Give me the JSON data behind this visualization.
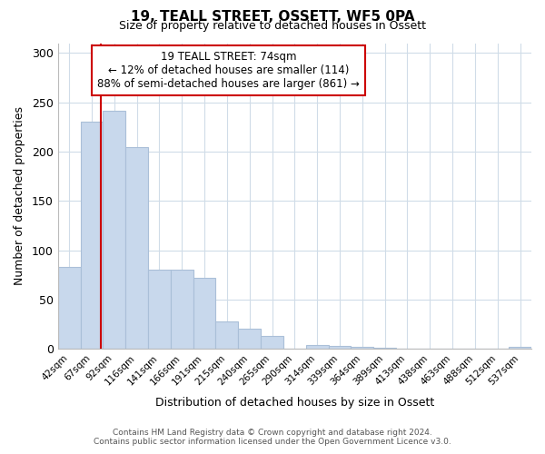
{
  "title": "19, TEALL STREET, OSSETT, WF5 0PA",
  "subtitle": "Size of property relative to detached houses in Ossett",
  "xlabel": "Distribution of detached houses by size in Ossett",
  "ylabel": "Number of detached properties",
  "bar_values": [
    83,
    230,
    241,
    205,
    80,
    80,
    72,
    28,
    20,
    13,
    0,
    4,
    3,
    2,
    1,
    0,
    0,
    0,
    0,
    0,
    2
  ],
  "bar_labels": [
    "42sqm",
    "67sqm",
    "92sqm",
    "116sqm",
    "141sqm",
    "166sqm",
    "191sqm",
    "215sqm",
    "240sqm",
    "265sqm",
    "290sqm",
    "314sqm",
    "339sqm",
    "364sqm",
    "389sqm",
    "413sqm",
    "438sqm",
    "463sqm",
    "488sqm",
    "512sqm",
    "537sqm"
  ],
  "bar_color": "#c8d8ec",
  "bar_edge_color": "#aabfd8",
  "red_line_x": 1.42,
  "red_line_color": "#cc0000",
  "annotation_line1": "19 TEALL STREET: 74sqm",
  "annotation_line2": "← 12% of detached houses are smaller (114)",
  "annotation_line3": "88% of semi-detached houses are larger (861) →",
  "annotation_box_color": "#ffffff",
  "annotation_box_edge": "#cc0000",
  "ylim": [
    0,
    310
  ],
  "yticks": [
    0,
    50,
    100,
    150,
    200,
    250,
    300
  ],
  "footer1": "Contains HM Land Registry data © Crown copyright and database right 2024.",
  "footer2": "Contains public sector information licensed under the Open Government Licence v3.0.",
  "background_color": "#ffffff",
  "grid_color": "#d0dce8"
}
